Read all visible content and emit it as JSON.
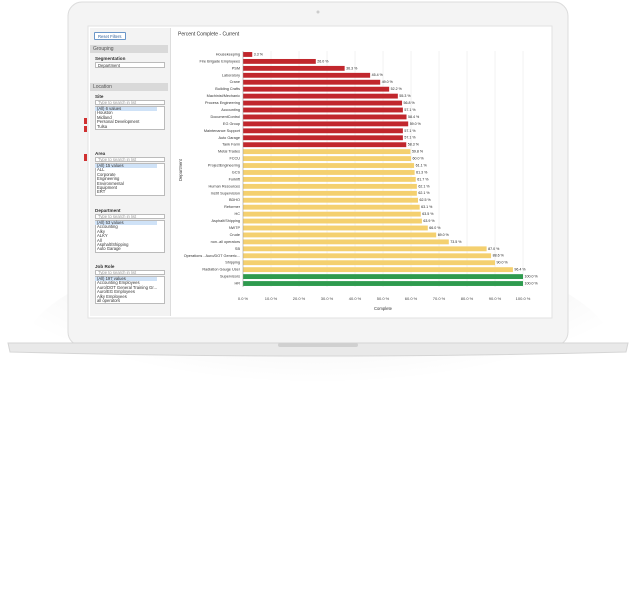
{
  "sidebar": {
    "reset_button": "Reset Filters",
    "grouping": {
      "title": "Grouping",
      "label": "Segmentation",
      "selected": "Department"
    },
    "location": {
      "title": "Location",
      "filters": [
        {
          "label": "Site",
          "search": "Type to search in list",
          "items": [
            "(All) 6 values",
            "Houston",
            "Midland",
            "Personal Development",
            "Tulsa"
          ]
        },
        {
          "label": "Area",
          "search": "Type to search in list",
          "items": [
            "(All) 15 values",
            "ALL",
            "Corporate",
            "Engineering",
            "Environmental",
            "Equipment",
            "ERT"
          ]
        },
        {
          "label": "Department",
          "search": "Type to search in list",
          "items": [
            "(All) 53 values",
            "Accounting",
            "Alky",
            "ALKY",
            "All",
            "Asphalt/Shipping",
            "Auto Garage"
          ]
        },
        {
          "label": "Job Role",
          "search": "Type to search in list",
          "items": [
            "(All) 197 values",
            "Accounting Employees",
            "Auro/DOT General Training Gr...",
            "Auro/EG Employees",
            "Alky Employees",
            "all operators"
          ]
        }
      ]
    }
  },
  "chart_data": {
    "type": "hbar",
    "title": "Percent Complete - Current",
    "x_label": "Complete",
    "y_label": "Department",
    "categories": [
      "Housekeeping",
      "Fire Brigade Employees",
      "PSM",
      "Laboratory",
      "Crane",
      "Building Crafts",
      "Machinist/Mechanic",
      "Process Engineering",
      "Accounting",
      "DocumentControl",
      "EG Group",
      "Maintenance Support",
      "Auto Garage",
      "Tank Farm",
      "Metal Trades",
      "FCCU",
      "ProjectEngineering",
      "GCS",
      "Forklift",
      "Human Resources",
      "Instrt Supervision",
      "BDHO",
      "Reformer",
      "HC",
      "Asphalt/Shipping",
      "NWTP",
      "Crude",
      "non..all operators",
      "SB",
      "Operations - Auro/DOT Generic...",
      "Shipping",
      "Radiation Gauge User",
      "Supervisors",
      "HR"
    ],
    "values": [
      3.3,
      26.0,
      36.3,
      45.4,
      49.0,
      52.2,
      55.3,
      56.8,
      57.1,
      58.4,
      59.0,
      57.1,
      57.1,
      58.3,
      59.8,
      60.0,
      61.1,
      61.3,
      61.7,
      62.1,
      62.1,
      62.5,
      63.1,
      63.5,
      63.9,
      66.0,
      69.0,
      73.5,
      87.0,
      88.6,
      90.0,
      96.4,
      100.0,
      100.0
    ],
    "value_labels": [
      "3.3 %",
      "26.0 %",
      "36.3 %",
      "45.4 %",
      "49.0 %",
      "52.2 %",
      "55.3 %",
      "56.8 %",
      "57.1 %",
      "58.4 %",
      "59.0 %",
      "57.1 %",
      "57.1 %",
      "58.3 %",
      "59.8 %",
      "60.0 %",
      "61.1 %",
      "61.3 %",
      "61.7 %",
      "62.1 %",
      "62.1 %",
      "62.5 %",
      "63.1 %",
      "63.5 %",
      "63.9 %",
      "66.0 %",
      "69.0 %",
      "73.5 %",
      "87.0 %",
      "88.6 %",
      "90.0 %",
      "96.4 %",
      "100.0 %",
      "100.0 %"
    ],
    "colors": [
      "#c1272d",
      "#c1272d",
      "#c1272d",
      "#c1272d",
      "#c1272d",
      "#c1272d",
      "#c1272d",
      "#c1272d",
      "#c1272d",
      "#c1272d",
      "#c1272d",
      "#c1272d",
      "#c1272d",
      "#c1272d",
      "#f4d06f",
      "#f4d06f",
      "#f4d06f",
      "#f4d06f",
      "#f4d06f",
      "#f4d06f",
      "#f4d06f",
      "#f4d06f",
      "#f4d06f",
      "#f4d06f",
      "#f4d06f",
      "#f4d06f",
      "#f4d06f",
      "#f4d06f",
      "#f4d06f",
      "#f4d06f",
      "#f4d06f",
      "#f4d06f",
      "#2e9b4e",
      "#2e9b4e"
    ],
    "xlim": [
      0,
      100
    ],
    "xticks": [
      {
        "value": 0,
        "label": "0.0 %"
      },
      {
        "value": 10,
        "label": "10.0 %"
      },
      {
        "value": 20,
        "label": "20.0 %"
      },
      {
        "value": 30,
        "label": "30.0 %"
      },
      {
        "value": 40,
        "label": "40.0 %"
      },
      {
        "value": 50,
        "label": "50.0 %"
      },
      {
        "value": 60,
        "label": "60.0 %"
      },
      {
        "value": 70,
        "label": "70.0 %"
      },
      {
        "value": 80,
        "label": "80.0 %"
      },
      {
        "value": 90,
        "label": "90.0 %"
      },
      {
        "value": 100,
        "label": "100.0 %"
      }
    ],
    "grid": true
  }
}
